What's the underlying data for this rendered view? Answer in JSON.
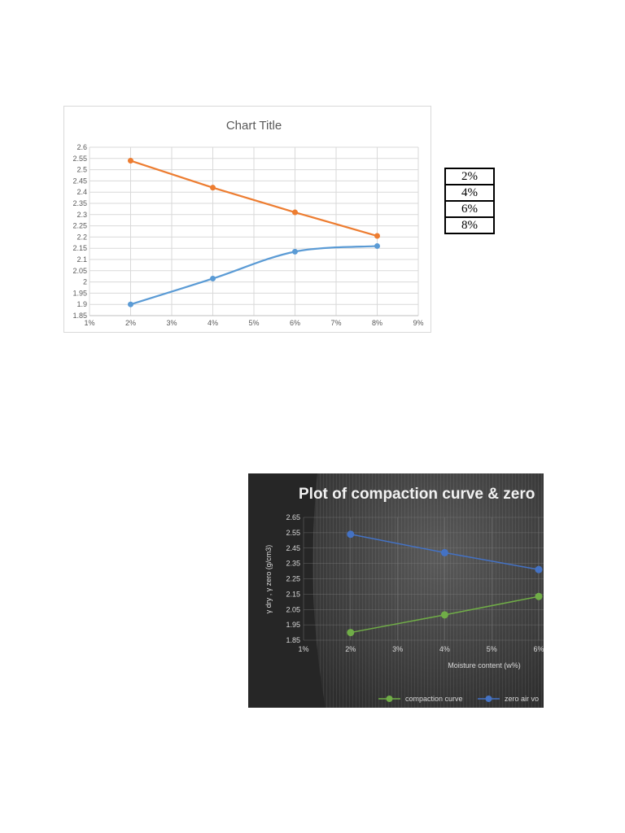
{
  "chart_data": [
    {
      "type": "line",
      "title": "Chart Title",
      "xlabel": "",
      "ylabel": "",
      "x_ticks": [
        "1%",
        "2%",
        "3%",
        "4%",
        "5%",
        "6%",
        "7%",
        "8%",
        "9%"
      ],
      "y_ticks": [
        "1.85",
        "1.9",
        "1.95",
        "2",
        "2.05",
        "2.1",
        "2.15",
        "2.2",
        "2.25",
        "2.3",
        "2.35",
        "2.4",
        "2.45",
        "2.5",
        "2.55",
        "2.6"
      ],
      "xlim": [
        1,
        9
      ],
      "ylim": [
        1.85,
        2.6
      ],
      "grid": true,
      "legend": "none",
      "series": [
        {
          "color": "#ed7d31",
          "smooth": false,
          "x": [
            2,
            4,
            6,
            8
          ],
          "y": [
            2.54,
            2.42,
            2.31,
            2.205
          ]
        },
        {
          "color": "#5b9bd5",
          "smooth": true,
          "x": [
            2,
            4,
            6,
            8
          ],
          "y": [
            1.9,
            2.015,
            2.135,
            2.16
          ]
        }
      ]
    },
    {
      "type": "line",
      "title": "Plot of compaction curve & zero",
      "xlabel": "Moisture content (w%)",
      "ylabel": "γ dry , γ zero   (g/cm3)",
      "x_ticks": [
        "1%",
        "2%",
        "3%",
        "4%",
        "5%",
        "6%"
      ],
      "y_ticks": [
        "1.85",
        "1.95",
        "2.05",
        "2.15",
        "2.25",
        "2.35",
        "2.45",
        "2.55",
        "2.65"
      ],
      "xlim": [
        1,
        6
      ],
      "ylim": [
        1.85,
        2.65
      ],
      "grid": true,
      "legend": "bottom",
      "series": [
        {
          "name": "compaction curve",
          "color": "#70ad47",
          "x": [
            2,
            4,
            6
          ],
          "y": [
            1.9,
            2.015,
            2.135
          ]
        },
        {
          "name": "zero air vo",
          "color": "#4472c4",
          "x": [
            2,
            4,
            6
          ],
          "y": [
            2.54,
            2.42,
            2.31
          ]
        }
      ]
    }
  ],
  "table": {
    "rows": [
      "2%",
      "4%",
      "6%",
      "8%"
    ]
  }
}
